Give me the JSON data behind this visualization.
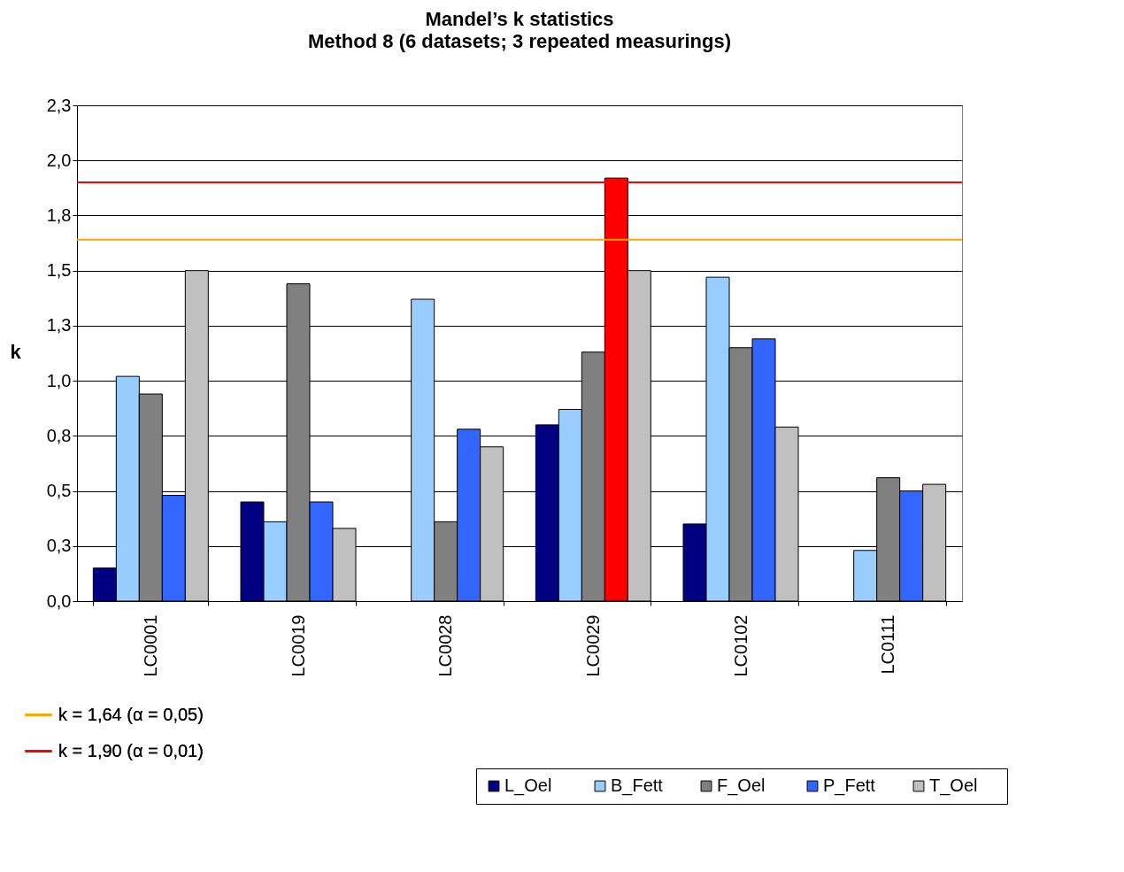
{
  "chart_data": {
    "type": "bar",
    "title": "Mandel’s k statistics",
    "subtitle": "Method 8 (6 datasets; 3 repeated measurings)",
    "ylabel": "k",
    "categories": [
      "LC0001",
      "LC0019",
      "LC0028",
      "LC0029",
      "LC0102",
      "LC0111"
    ],
    "series": [
      {
        "name": "L_Oel",
        "color": "#000080",
        "values": [
          0.15,
          0.45,
          null,
          0.8,
          0.35,
          null
        ]
      },
      {
        "name": "B_Fett",
        "color": "#99ccff",
        "values": [
          1.02,
          0.36,
          1.37,
          0.87,
          1.47,
          0.23
        ]
      },
      {
        "name": "F_Oel",
        "color": "#808080",
        "values": [
          0.94,
          1.44,
          0.36,
          1.13,
          1.15,
          0.56
        ]
      },
      {
        "name": "P_Fett",
        "color": "#3366ff",
        "colors": [
          "#3366ff",
          "#3366ff",
          "#3366ff",
          "#ff0000",
          "#3366ff",
          "#3366ff"
        ],
        "values": [
          0.48,
          0.45,
          0.78,
          1.92,
          1.19,
          0.5
        ]
      },
      {
        "name": "T_Oel",
        "color": "#c0c0c0",
        "values": [
          1.5,
          0.33,
          0.7,
          1.5,
          0.79,
          0.53
        ]
      }
    ],
    "ylim": [
      0,
      2.25
    ],
    "yticks": [
      {
        "value": 0,
        "label": "0,0"
      },
      {
        "value": 0.25,
        "label": "0,3"
      },
      {
        "value": 0.5,
        "label": "0,5"
      },
      {
        "value": 0.75,
        "label": "0,8"
      },
      {
        "value": 1,
        "label": "1,0"
      },
      {
        "value": 1.25,
        "label": "1,3"
      },
      {
        "value": 1.5,
        "label": "1,5"
      },
      {
        "value": 1.75,
        "label": "1,8"
      },
      {
        "value": 2,
        "label": "2,0"
      },
      {
        "value": 2.25,
        "label": "2,3"
      }
    ],
    "ref_lines": [
      {
        "axis": "y",
        "value": 1.64,
        "label": "k = 1,64 (α = 0,05)",
        "color": "#ffa500"
      },
      {
        "axis": "y",
        "value": 1.9,
        "label": "k = 1,90 (α = 0,01)",
        "color": "#ff0000"
      }
    ],
    "grid": "y",
    "legend": "bottom right"
  }
}
